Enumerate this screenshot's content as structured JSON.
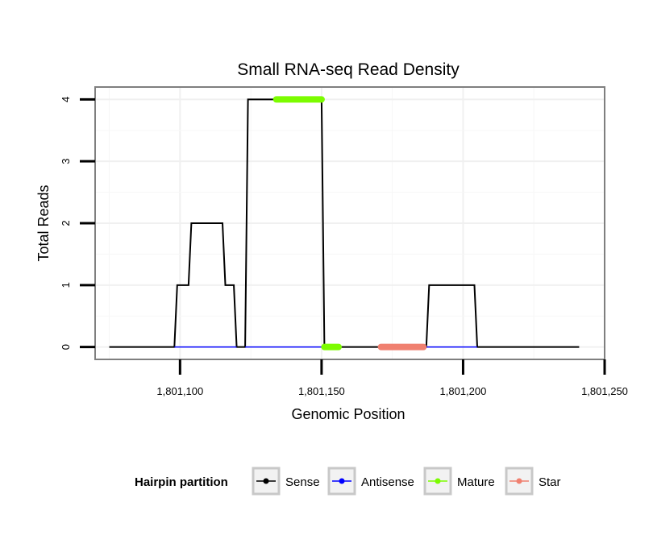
{
  "chart_data": {
    "type": "line",
    "title": "Small RNA-seq Read Density",
    "xlabel": "Genomic Position",
    "ylabel": "Total Reads",
    "xlim": [
      1801070,
      1801250
    ],
    "ylim": [
      -0.2,
      4.2
    ],
    "x_ticks": [
      1801100,
      1801150,
      1801200,
      1801250
    ],
    "x_tick_labels": [
      "1,801,100",
      "1,801,150",
      "1,801,200",
      "1,801,250"
    ],
    "y_ticks": [
      0,
      1,
      2,
      3,
      4
    ],
    "y_tick_labels": [
      "0",
      "1",
      "2",
      "3",
      "4"
    ],
    "grid": true,
    "legend": {
      "title": "Hairpin partition",
      "placement": "bottom",
      "entries": [
        {
          "label": "Sense",
          "color": "#000000"
        },
        {
          "label": "Antisense",
          "color": "#0000ff"
        },
        {
          "label": "Mature",
          "color": "#7cfc00"
        },
        {
          "label": "Star",
          "color": "#f08070"
        }
      ]
    },
    "series": [
      {
        "name": "Sense",
        "color": "#000000",
        "points": [
          [
            1801075,
            0
          ],
          [
            1801098,
            0
          ],
          [
            1801099,
            1
          ],
          [
            1801103,
            1
          ],
          [
            1801104,
            2
          ],
          [
            1801115,
            2
          ],
          [
            1801116,
            1
          ],
          [
            1801119,
            1
          ],
          [
            1801120,
            0
          ],
          [
            1801123,
            0
          ],
          [
            1801124,
            4
          ],
          [
            1801150,
            4
          ],
          [
            1801151,
            0
          ],
          [
            1801187,
            0
          ],
          [
            1801188,
            1
          ],
          [
            1801204,
            1
          ],
          [
            1801205,
            0
          ],
          [
            1801241,
            0
          ]
        ]
      },
      {
        "name": "Antisense",
        "color": "#0000ff",
        "segments": [
          [
            1801098,
            1801120
          ],
          [
            1801123,
            1801151
          ],
          [
            1801187,
            1801205
          ]
        ],
        "value": 0
      },
      {
        "name": "Mature",
        "color": "#7cfc00",
        "segments": [
          [
            1801134,
            1801150,
            4
          ],
          [
            1801151,
            1801156,
            0
          ]
        ]
      },
      {
        "name": "Star",
        "color": "#f08070",
        "segments": [
          [
            1801171,
            1801186,
            0
          ]
        ]
      }
    ]
  }
}
